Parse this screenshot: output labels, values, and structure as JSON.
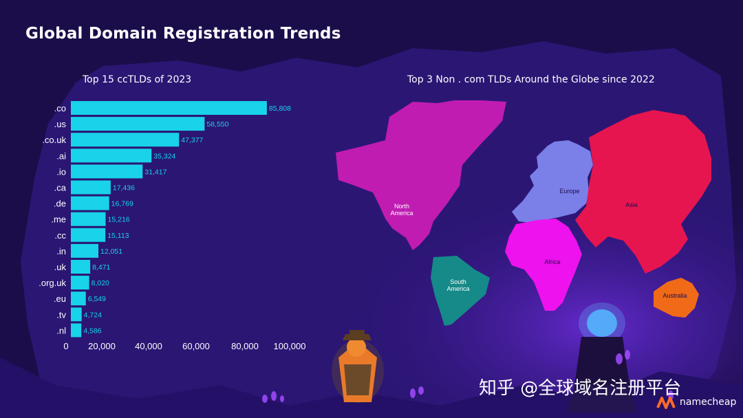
{
  "title": "Global Domain Registration Trends",
  "watermark": "知乎 @全球域名注册平台",
  "brand": {
    "name": "namecheap",
    "color": "#ff6a2b"
  },
  "colors": {
    "background": "#1b0d4a",
    "bar": "#19d3ea",
    "north_america": "#c01cb2",
    "south_america": "#168a88",
    "europe": "#7b7fe8",
    "africa": "#ee12ee",
    "asia": "#e6154f",
    "australia": "#f06a18"
  },
  "icons": [
    "fox-mascot-illustration",
    "crystal-ball-illustration",
    "namecheap-logo-icon"
  ],
  "chart_data": [
    {
      "type": "bar",
      "orientation": "horizontal",
      "title": "Top 15 ccTLDs of 2023",
      "categories": [
        ".co",
        ".us",
        ".co.uk",
        ".ai",
        ".io",
        ".ca",
        ".de",
        ".me",
        ".cc",
        ".in",
        ".uk",
        ".org.uk",
        ".eu",
        ".tv",
        ".nl"
      ],
      "values": [
        85808,
        58550,
        47377,
        35324,
        31417,
        17436,
        16769,
        15216,
        15113,
        12051,
        8471,
        8020,
        6549,
        4724,
        4586
      ],
      "value_labels": [
        "85,808",
        "58,550",
        "47,377",
        "35,324",
        "31,417",
        "17,436",
        "16,769",
        "15,216",
        "15,113",
        "12,051",
        "8,471",
        "8,020",
        "6,549",
        "4,724",
        "4,586"
      ],
      "xlim": [
        0,
        100000
      ],
      "xticks": [
        "0",
        "20,000",
        "40,000",
        "60,000",
        "80,000",
        "100,000"
      ],
      "grid": false,
      "legend": "none"
    },
    {
      "type": "map",
      "title": "Top 3 Non . com TLDs Around the Globe since 2022",
      "regions": [
        "North America",
        "South America",
        "Europe",
        "Africa",
        "Asia",
        "Australia"
      ]
    }
  ]
}
